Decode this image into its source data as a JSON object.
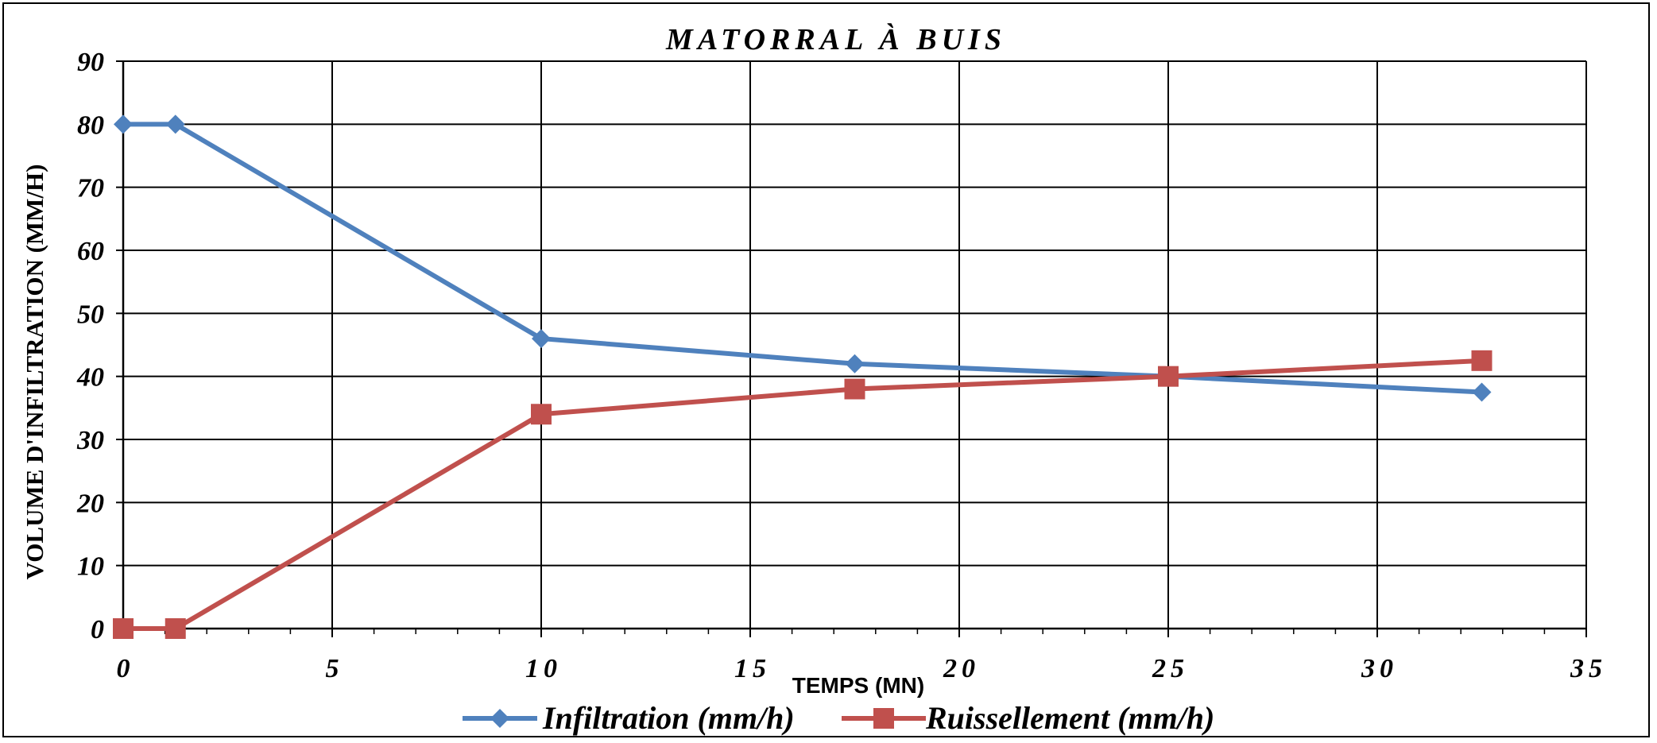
{
  "chart_data": {
    "type": "line",
    "title": "MATORRAL À BUIS",
    "xlabel": "TEMPS (MN)",
    "ylabel": "VOLUME D'INFILTRATION (MM/H)",
    "xlim": [
      0,
      35
    ],
    "ylim": [
      0,
      90
    ],
    "x_ticks": [
      0,
      5,
      10,
      15,
      20,
      25,
      30,
      35
    ],
    "y_ticks": [
      0,
      10,
      20,
      30,
      40,
      50,
      60,
      70,
      80,
      90
    ],
    "grid": true,
    "legend_position": "bottom",
    "series": [
      {
        "name": "Infiltration (mm/h)",
        "color": "#4F81BD",
        "marker": "diamond",
        "x": [
          0,
          1.25,
          10,
          17.5,
          25,
          32.5
        ],
        "y": [
          80,
          80,
          46,
          42,
          40,
          37.5
        ]
      },
      {
        "name": "Ruissellement (mm/h)",
        "color": "#C0504D",
        "marker": "square",
        "x": [
          0,
          1.25,
          10,
          17.5,
          25,
          32.5
        ],
        "y": [
          0,
          0,
          34,
          38,
          40,
          42.5
        ]
      }
    ]
  }
}
